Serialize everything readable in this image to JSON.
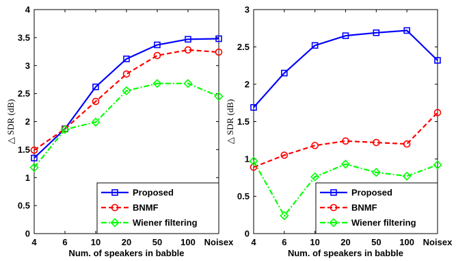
{
  "chart_data": [
    {
      "type": "line",
      "categories": [
        "4",
        "6",
        "10",
        "20",
        "50",
        "100",
        "Noisex"
      ],
      "xlabel": "Num. of speakers in babble",
      "ylabel": "△ SDR (dB)",
      "ylim": [
        0,
        4
      ],
      "yticks": [
        "0",
        "0.5",
        "1",
        "1.5",
        "2",
        "2.5",
        "3",
        "3.5",
        "4"
      ],
      "legend_position": "bottom-right",
      "series": [
        {
          "name": "Proposed",
          "color": "#0000ff",
          "marker": "square",
          "line": "solid",
          "values": [
            1.35,
            1.87,
            2.62,
            3.12,
            3.37,
            3.47,
            3.48
          ]
        },
        {
          "name": "BNMF",
          "color": "#ff0000",
          "marker": "circle",
          "line": "dashed",
          "values": [
            1.49,
            1.87,
            2.36,
            2.85,
            3.18,
            3.28,
            3.24
          ]
        },
        {
          "name": "Wiener filtering",
          "color": "#00ff00",
          "marker": "diamond",
          "line": "dashdot",
          "values": [
            1.18,
            1.86,
            1.99,
            2.55,
            2.68,
            2.68,
            2.45
          ]
        }
      ]
    },
    {
      "type": "line",
      "categories": [
        "4",
        "6",
        "10",
        "20",
        "50",
        "100",
        "Noisex"
      ],
      "xlabel": "Num. of speakers in babble",
      "ylabel": "△ SDR (dB)",
      "ylim": [
        0,
        3
      ],
      "yticks": [
        "0",
        "0.5",
        "1",
        "1.5",
        "2",
        "2.5",
        "3"
      ],
      "legend_position": "bottom-right",
      "series": [
        {
          "name": "Proposed",
          "color": "#0000ff",
          "marker": "square",
          "line": "solid",
          "values": [
            1.69,
            2.15,
            2.52,
            2.65,
            2.69,
            2.72,
            2.32
          ]
        },
        {
          "name": "BNMF",
          "color": "#ff0000",
          "marker": "circle",
          "line": "dashed",
          "values": [
            0.89,
            1.05,
            1.18,
            1.24,
            1.22,
            1.2,
            1.62
          ]
        },
        {
          "name": "Wiener filtering",
          "color": "#00ff00",
          "marker": "diamond",
          "line": "dashdot",
          "values": [
            0.97,
            0.24,
            0.76,
            0.93,
            0.82,
            0.77,
            0.92
          ]
        }
      ]
    }
  ]
}
